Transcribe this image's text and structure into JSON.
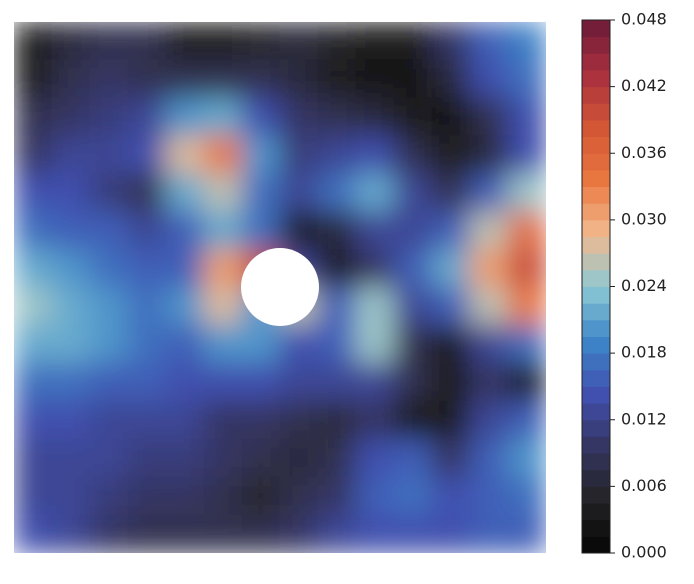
{
  "chart_data": {
    "type": "contour",
    "z": [
      [
        0.004,
        0.007,
        0.009,
        0.008,
        0.004,
        0.003,
        0.005,
        0.006,
        0.005,
        0.003,
        0.004,
        0.01,
        0.016,
        0.019
      ],
      [
        0.004,
        0.008,
        0.01,
        0.009,
        0.008,
        0.008,
        0.009,
        0.007,
        0.004,
        0.002,
        0.002,
        0.006,
        0.014,
        0.018
      ],
      [
        0.008,
        0.01,
        0.011,
        0.013,
        0.02,
        0.022,
        0.014,
        0.01,
        0.008,
        0.006,
        0.004,
        0.002,
        0.008,
        0.014
      ],
      [
        0.01,
        0.012,
        0.012,
        0.014,
        0.028,
        0.034,
        0.02,
        0.011,
        0.012,
        0.014,
        0.008,
        0.003,
        0.006,
        0.014
      ],
      [
        0.014,
        0.014,
        0.011,
        0.008,
        0.022,
        0.026,
        0.018,
        0.013,
        0.018,
        0.021,
        0.012,
        0.008,
        0.016,
        0.024
      ],
      [
        0.018,
        0.016,
        0.015,
        0.012,
        0.015,
        0.022,
        0.018,
        0.004,
        0.006,
        0.012,
        0.012,
        0.016,
        0.026,
        0.036
      ],
      [
        0.022,
        0.02,
        0.018,
        0.016,
        0.016,
        0.03,
        0.04,
        0.012,
        0.004,
        0.01,
        0.016,
        0.022,
        0.03,
        0.04
      ],
      [
        0.024,
        0.022,
        0.02,
        0.018,
        0.02,
        0.028,
        0.02,
        0.026,
        0.016,
        0.024,
        0.012,
        0.016,
        0.026,
        0.034
      ],
      [
        0.022,
        0.021,
        0.02,
        0.018,
        0.016,
        0.02,
        0.02,
        0.014,
        0.016,
        0.024,
        0.008,
        0.004,
        0.012,
        0.018
      ],
      [
        0.018,
        0.018,
        0.016,
        0.016,
        0.014,
        0.014,
        0.014,
        0.012,
        0.012,
        0.012,
        0.008,
        0.004,
        0.01,
        0.003
      ],
      [
        0.014,
        0.014,
        0.013,
        0.012,
        0.012,
        0.01,
        0.01,
        0.008,
        0.006,
        0.01,
        0.004,
        0.003,
        0.012,
        0.016
      ],
      [
        0.012,
        0.012,
        0.012,
        0.011,
        0.011,
        0.01,
        0.008,
        0.006,
        0.008,
        0.014,
        0.016,
        0.01,
        0.016,
        0.02
      ],
      [
        0.012,
        0.012,
        0.011,
        0.01,
        0.01,
        0.008,
        0.005,
        0.008,
        0.01,
        0.016,
        0.018,
        0.014,
        0.016,
        0.018
      ],
      [
        0.014,
        0.012,
        0.01,
        0.008,
        0.008,
        0.008,
        0.009,
        0.01,
        0.012,
        0.014,
        0.014,
        0.014,
        0.016,
        0.016
      ]
    ],
    "zlim": [
      0,
      0.048
    ],
    "n_levels": 32,
    "colorscale": [
      "#050505",
      "#232326",
      "#353560",
      "#4150b0",
      "#3d86c8",
      "#8ec9d4",
      "#f2b88c",
      "#e9773f",
      "#d25535",
      "#a8303f",
      "#6b1b38"
    ],
    "colorbar_ticks": [
      {
        "value": 0,
        "label": "0.000"
      },
      {
        "value": 0.006,
        "label": "0.006"
      },
      {
        "value": 0.012,
        "label": "0.012"
      },
      {
        "value": 0.018,
        "label": "0.018"
      },
      {
        "value": 0.024,
        "label": "0.024"
      },
      {
        "value": 0.03,
        "label": "0.030"
      },
      {
        "value": 0.036,
        "label": "0.036"
      },
      {
        "value": 0.042,
        "label": "0.042"
      },
      {
        "value": 0.048,
        "label": "0.048"
      }
    ]
  }
}
